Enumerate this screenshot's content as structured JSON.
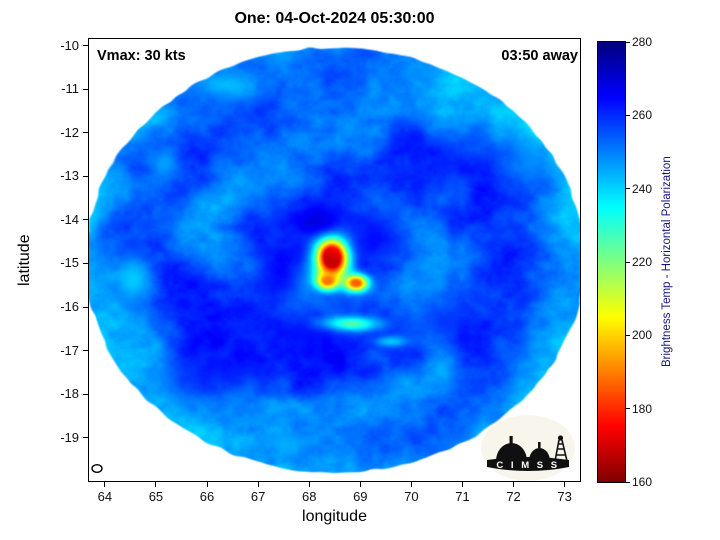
{
  "figure": {
    "logo_text": "C I M S S"
  },
  "colors": {
    "background": "#ffffff",
    "axis": "#000000",
    "title": "#000000",
    "colorbar_label": "#14147a"
  },
  "chart_data": {
    "type": "heatmap",
    "title": "One: 04-Oct-2024 05:30:00",
    "xlabel": "longitude",
    "ylabel": "latitude",
    "xlim": [
      63.67,
      73.32
    ],
    "ylim": [
      -20.02,
      -9.82
    ],
    "xticks": [
      64,
      65,
      66,
      67,
      68,
      69,
      70,
      71,
      72,
      73
    ],
    "yticks": [
      -10,
      -11,
      -12,
      -13,
      -14,
      -15,
      -16,
      -17,
      -18,
      -19
    ],
    "grid": false,
    "annotations": [
      {
        "text": "Vmax: 30 kts",
        "position": "top-left"
      },
      {
        "text": "03:50 away",
        "position": "top-right"
      }
    ],
    "colorbar": {
      "label": "Brightness Temp - Horizontal Polarization",
      "min": 160,
      "max": 280,
      "ticks": [
        160,
        180,
        200,
        220,
        240,
        260,
        280
      ],
      "colormap": "jet_reversed",
      "orientation": "vertical",
      "position": "right"
    },
    "disk": {
      "center_lon": 68.5,
      "center_lat": -14.92,
      "radius_deg": 4.92
    },
    "storm_marker": {
      "lon": 63.87,
      "lat": -19.72,
      "symbol": "open-ellipse"
    },
    "field": {
      "base_temp": 255,
      "edge_cool": 9,
      "edge_start": 3.4,
      "band_amp": 6.5,
      "band_count": 2,
      "band_pitch": 1.9,
      "band_phase": 1.0,
      "band_radius": 2.8,
      "band_width": 1.9,
      "band_twist": 1.2,
      "noise_amp": 6,
      "noise_scale": 1.2,
      "noise_amp2": 3.5,
      "noise_scale2": 4.5,
      "features": [
        {
          "lon": 68.45,
          "lat": -14.85,
          "sx": 0.3,
          "sy": 0.45,
          "temp": 166,
          "w": 1.3
        },
        {
          "lon": 68.36,
          "lat": -15.4,
          "sx": 0.22,
          "sy": 0.2,
          "temp": 188,
          "w": 1.1
        },
        {
          "lon": 68.92,
          "lat": -15.45,
          "sx": 0.24,
          "sy": 0.2,
          "temp": 186,
          "w": 1.1
        },
        {
          "lon": 68.8,
          "lat": -16.4,
          "sx": 0.55,
          "sy": 0.17,
          "temp": 214,
          "w": 0.9
        },
        {
          "lon": 69.6,
          "lat": -16.8,
          "sx": 0.35,
          "sy": 0.13,
          "temp": 232,
          "w": 0.7
        },
        {
          "lon": 64.55,
          "lat": -15.4,
          "sx": 0.35,
          "sy": 0.55,
          "temp": 238,
          "w": 0.8
        },
        {
          "lon": 65.15,
          "lat": -12.7,
          "sx": 0.3,
          "sy": 0.4,
          "temp": 241,
          "w": 0.7
        },
        {
          "lon": 66.4,
          "lat": -10.9,
          "sx": 0.55,
          "sy": 0.3,
          "temp": 239,
          "w": 0.7
        },
        {
          "lon": 67.6,
          "lat": -19.15,
          "sx": 0.55,
          "sy": 0.25,
          "temp": 242,
          "w": 0.6
        },
        {
          "lon": 63.95,
          "lat": -17.1,
          "sx": 0.3,
          "sy": 0.3,
          "temp": 240,
          "w": 0.6
        },
        {
          "lon": 72.25,
          "lat": -12.6,
          "sx": 0.45,
          "sy": 0.55,
          "temp": 248,
          "w": 0.5
        },
        {
          "lon": 68.15,
          "lat": -14.05,
          "sx": 0.7,
          "sy": 0.4,
          "temp": 272,
          "w": 0.75
        },
        {
          "lon": 67.4,
          "lat": -15.3,
          "sx": 0.45,
          "sy": 0.7,
          "temp": 270,
          "w": 0.65
        },
        {
          "lon": 69.25,
          "lat": -14.35,
          "sx": 0.5,
          "sy": 0.55,
          "temp": 268,
          "w": 0.6
        },
        {
          "lon": 68.0,
          "lat": -16.7,
          "sx": 0.9,
          "sy": 0.4,
          "temp": 268,
          "w": 0.55
        },
        {
          "lon": 66.0,
          "lat": -17.6,
          "sx": 1.1,
          "sy": 0.55,
          "temp": 266,
          "w": 0.5
        },
        {
          "lon": 70.6,
          "lat": -16.3,
          "sx": 0.9,
          "sy": 0.55,
          "temp": 264,
          "w": 0.45
        },
        {
          "lon": 70.9,
          "lat": -12.5,
          "sx": 0.8,
          "sy": 0.7,
          "temp": 263,
          "w": 0.4
        }
      ]
    }
  }
}
